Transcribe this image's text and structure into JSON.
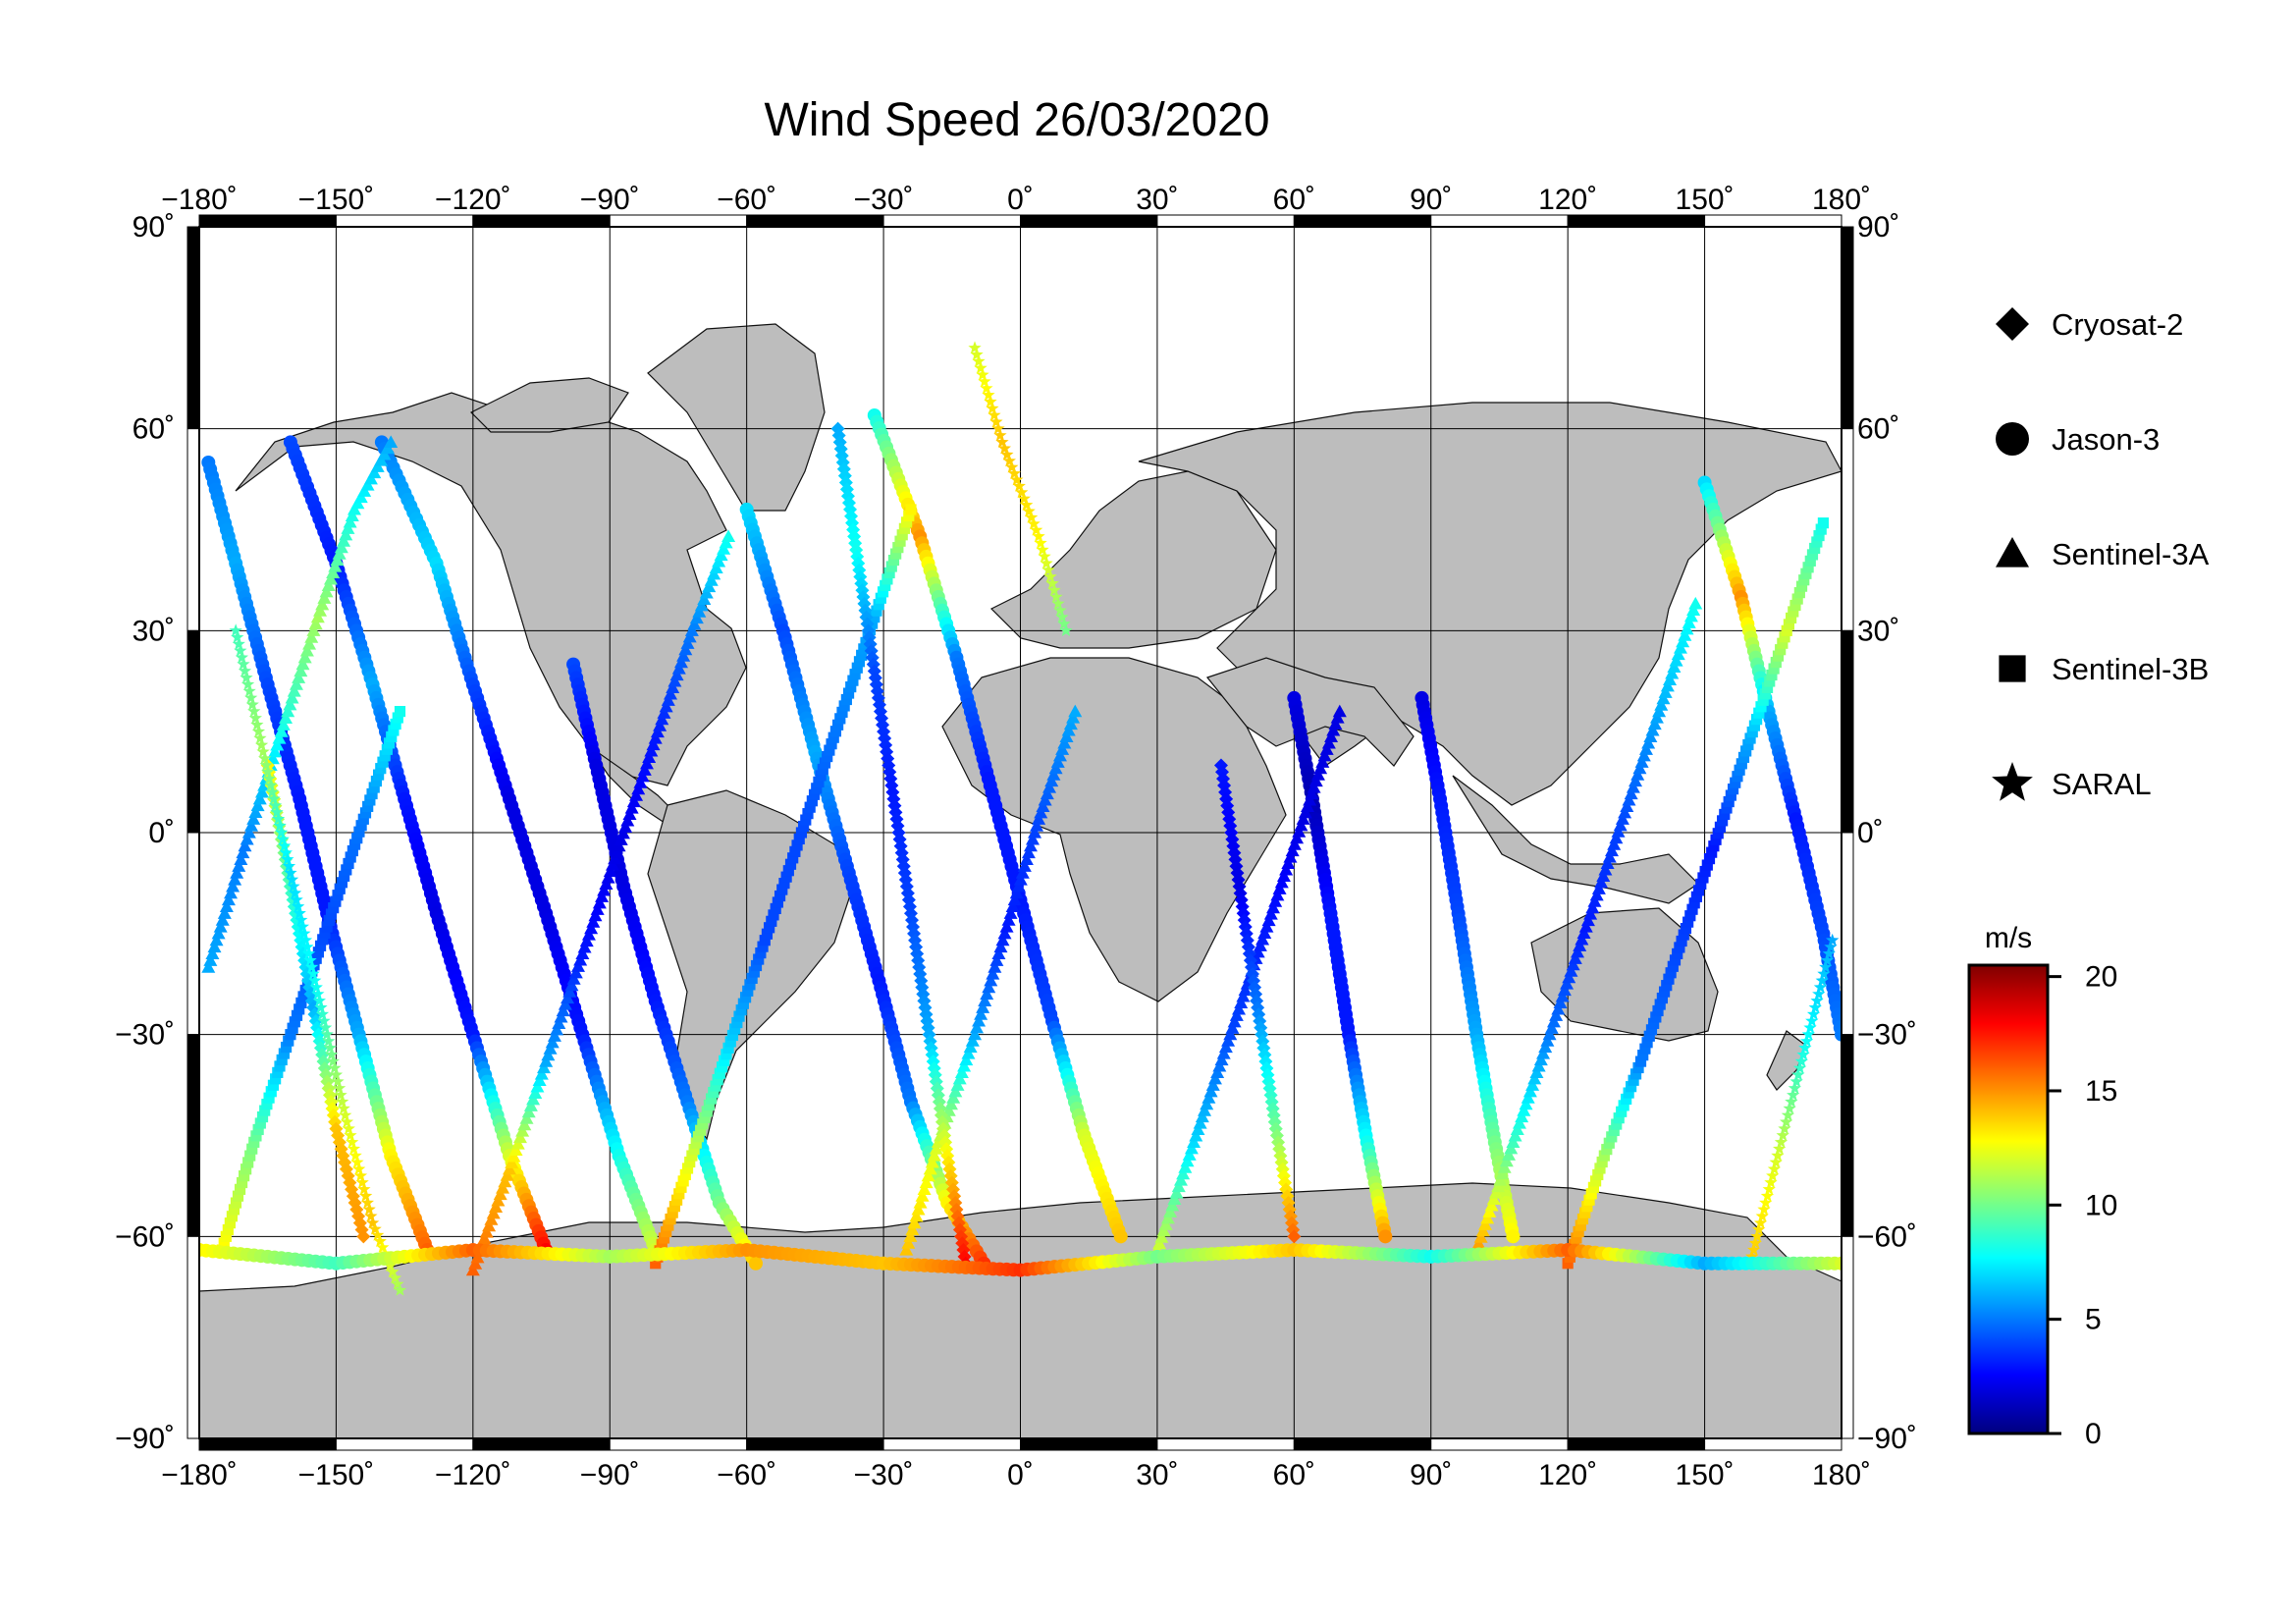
{
  "chart_data": {
    "type": "scatter",
    "title": "Wind Speed 26/03/2020",
    "projection": "equirectangular",
    "xlim": [
      -180,
      180
    ],
    "ylim": [
      -90,
      90
    ],
    "grid": true,
    "legend_position": "right",
    "x_ticks": [
      {
        "v": -180,
        "label": "−180˚"
      },
      {
        "v": -150,
        "label": "−150˚"
      },
      {
        "v": -120,
        "label": "−120˚"
      },
      {
        "v": -90,
        "label": "−90˚"
      },
      {
        "v": -60,
        "label": "−60˚"
      },
      {
        "v": -30,
        "label": "−30˚"
      },
      {
        "v": 0,
        "label": "0˚"
      },
      {
        "v": 30,
        "label": "30˚"
      },
      {
        "v": 60,
        "label": "60˚"
      },
      {
        "v": 90,
        "label": "90˚"
      },
      {
        "v": 120,
        "label": "120˚"
      },
      {
        "v": 150,
        "label": "150˚"
      },
      {
        "v": 180,
        "label": "180˚"
      }
    ],
    "y_ticks": [
      {
        "v": 90,
        "label": "90˚"
      },
      {
        "v": 60,
        "label": "60˚"
      },
      {
        "v": 30,
        "label": "30˚"
      },
      {
        "v": 0,
        "label": "0˚"
      },
      {
        "v": -30,
        "label": "−30˚"
      },
      {
        "v": -60,
        "label": "−60˚"
      },
      {
        "v": -90,
        "label": "−90˚"
      }
    ],
    "series": [
      {
        "name": "Cryosat-2",
        "marker": "diamond"
      },
      {
        "name": "Jason-3",
        "marker": "circle"
      },
      {
        "name": "Sentinel-3A",
        "marker": "triangle"
      },
      {
        "name": "Sentinel-3B",
        "marker": "square"
      },
      {
        "name": "SARAL",
        "marker": "star"
      }
    ],
    "colorbar": {
      "unit": "m/s",
      "min": 0,
      "max": 20.5,
      "ticks": [
        0,
        5,
        10,
        15,
        20
      ],
      "colormap": "jet",
      "colors": [
        "#00007f",
        "#0000ff",
        "#007fff",
        "#00ffff",
        "#7fff7f",
        "#ffff00",
        "#ff7f00",
        "#ff0000",
        "#7f0000"
      ]
    },
    "tracks_description": "Satellite ground tracks over open ocean, descending and ascending passes, low speeds (blue) in tropics, high speeds (yellow-red) in Southern Ocean near -50 to -65 latitude.",
    "tracks": [
      {
        "series": "Jason-3",
        "points": [
          [
            -178,
            55
          ],
          [
            -172,
            40
          ],
          [
            -165,
            22
          ],
          [
            -158,
            5
          ],
          [
            -152,
            -12
          ],
          [
            -145,
            -30
          ],
          [
            -138,
            -48
          ],
          [
            -130,
            -62
          ]
        ],
        "values": [
          5,
          6,
          4,
          3,
          3,
          6,
          13,
          16
        ]
      },
      {
        "series": "Jason-3",
        "points": [
          [
            -160,
            58
          ],
          [
            -150,
            40
          ],
          [
            -142,
            22
          ],
          [
            -135,
            5
          ],
          [
            -128,
            -12
          ],
          [
            -120,
            -30
          ],
          [
            -112,
            -48
          ],
          [
            -104,
            -62
          ]
        ],
        "values": [
          4,
          3,
          6,
          3,
          2,
          3,
          12,
          18
        ]
      },
      {
        "series": "Jason-3",
        "points": [
          [
            -140,
            58
          ],
          [
            -128,
            40
          ],
          [
            -120,
            22
          ],
          [
            -112,
            5
          ],
          [
            -104,
            -12
          ],
          [
            -96,
            -30
          ],
          [
            -88,
            -48
          ],
          [
            -80,
            -62
          ]
        ],
        "values": [
          5,
          7,
          4,
          2,
          2,
          3,
          8,
          12
        ]
      },
      {
        "series": "Jason-3",
        "points": [
          [
            -98,
            25
          ],
          [
            -93,
            10
          ],
          [
            -87,
            -8
          ],
          [
            -80,
            -25
          ],
          [
            -73,
            -40
          ],
          [
            -66,
            -55
          ],
          [
            -58,
            -64
          ]
        ],
        "values": [
          4,
          2,
          2,
          3,
          5,
          10,
          14
        ]
      },
      {
        "series": "Jason-3",
        "points": [
          [
            -60,
            48
          ],
          [
            -52,
            30
          ],
          [
            -45,
            12
          ],
          [
            -38,
            -5
          ],
          [
            -31,
            -22
          ],
          [
            -24,
            -40
          ],
          [
            -16,
            -55
          ],
          [
            -8,
            -64
          ]
        ],
        "values": [
          7,
          4,
          6,
          4,
          3,
          5,
          13,
          17
        ]
      },
      {
        "series": "Jason-3",
        "points": [
          [
            -32,
            62
          ],
          [
            -22,
            44
          ],
          [
            -14,
            26
          ],
          [
            -7,
            8
          ],
          [
            0,
            -10
          ],
          [
            7,
            -28
          ],
          [
            14,
            -45
          ],
          [
            22,
            -60
          ]
        ],
        "values": [
          8,
          15,
          5,
          3,
          3,
          4,
          12,
          14
        ]
      },
      {
        "series": "Jason-3",
        "points": [
          [
            60,
            20
          ],
          [
            64,
            5
          ],
          [
            68,
            -12
          ],
          [
            72,
            -30
          ],
          [
            76,
            -46
          ],
          [
            80,
            -60
          ]
        ],
        "values": [
          2,
          1,
          3,
          3,
          8,
          15
        ]
      },
      {
        "series": "Jason-3",
        "points": [
          [
            88,
            20
          ],
          [
            92,
            5
          ],
          [
            96,
            -12
          ],
          [
            100,
            -30
          ],
          [
            104,
            -46
          ],
          [
            108,
            -60
          ]
        ],
        "values": [
          2,
          3,
          4,
          6,
          10,
          13
        ]
      },
      {
        "series": "Jason-3",
        "points": [
          [
            150,
            52
          ],
          [
            158,
            35
          ],
          [
            164,
            18
          ],
          [
            170,
            2
          ],
          [
            176,
            -15
          ],
          [
            180,
            -30
          ]
        ],
        "values": [
          7,
          15,
          6,
          3,
          4,
          5
        ]
      },
      {
        "series": "Sentinel-3A",
        "points": [
          [
            -178,
            -20
          ],
          [
            -170,
            -2
          ],
          [
            -162,
            15
          ],
          [
            -154,
            32
          ],
          [
            -146,
            48
          ],
          [
            -138,
            58
          ]
        ],
        "values": [
          6,
          5,
          8,
          11,
          8,
          6
        ]
      },
      {
        "series": "Sentinel-3A",
        "points": [
          [
            -120,
            -65
          ],
          [
            -112,
            -50
          ],
          [
            -104,
            -34
          ],
          [
            -96,
            -18
          ],
          [
            -88,
            -2
          ],
          [
            -80,
            14
          ],
          [
            -72,
            30
          ],
          [
            -64,
            44
          ]
        ],
        "values": [
          16,
          14,
          6,
          3,
          2,
          3,
          5,
          8
        ]
      },
      {
        "series": "Sentinel-3A",
        "points": [
          [
            -25,
            -62
          ],
          [
            -18,
            -46
          ],
          [
            -10,
            -30
          ],
          [
            -3,
            -14
          ],
          [
            4,
            2
          ],
          [
            12,
            18
          ]
        ],
        "values": [
          14,
          12,
          6,
          3,
          4,
          6
        ]
      },
      {
        "series": "Sentinel-3A",
        "points": [
          [
            30,
            -62
          ],
          [
            38,
            -46
          ],
          [
            46,
            -30
          ],
          [
            54,
            -14
          ],
          [
            62,
            2
          ],
          [
            70,
            18
          ]
        ],
        "values": [
          12,
          7,
          4,
          3,
          2,
          2
        ]
      },
      {
        "series": "Sentinel-3A",
        "points": [
          [
            100,
            -62
          ],
          [
            108,
            -46
          ],
          [
            116,
            -30
          ],
          [
            124,
            -14
          ],
          [
            132,
            2
          ],
          [
            140,
            18
          ],
          [
            148,
            34
          ]
        ],
        "values": [
          15,
          9,
          5,
          3,
          4,
          6,
          8
        ]
      },
      {
        "series": "Sentinel-3B",
        "points": [
          [
            -175,
            -62
          ],
          [
            -168,
            -46
          ],
          [
            -160,
            -30
          ],
          [
            -152,
            -14
          ],
          [
            -144,
            2
          ],
          [
            -136,
            18
          ]
        ],
        "values": [
          13,
          10,
          5,
          4,
          5,
          8
        ]
      },
      {
        "series": "Sentinel-3B",
        "points": [
          [
            -80,
            -64
          ],
          [
            -72,
            -48
          ],
          [
            -64,
            -32
          ],
          [
            -56,
            -16
          ],
          [
            -48,
            0
          ],
          [
            -40,
            16
          ],
          [
            -32,
            32
          ],
          [
            -24,
            48
          ]
        ],
        "values": [
          16,
          12,
          7,
          4,
          4,
          5,
          6,
          13
        ]
      },
      {
        "series": "Sentinel-3B",
        "points": [
          [
            120,
            -64
          ],
          [
            128,
            -48
          ],
          [
            136,
            -34
          ],
          [
            144,
            -18
          ],
          [
            152,
            -2
          ],
          [
            160,
            14
          ],
          [
            168,
            30
          ],
          [
            176,
            46
          ]
        ],
        "values": [
          16,
          11,
          5,
          4,
          3,
          6,
          12,
          8
        ]
      },
      {
        "series": "Cryosat-2",
        "points": [
          [
            -165,
            10
          ],
          [
            -160,
            -8
          ],
          [
            -155,
            -26
          ],
          [
            -150,
            -44
          ],
          [
            -144,
            -60
          ]
        ],
        "values": [
          13,
          9,
          6,
          14,
          15
        ]
      },
      {
        "series": "Cryosat-2",
        "points": [
          [
            -40,
            60
          ],
          [
            -36,
            42
          ],
          [
            -32,
            24
          ],
          [
            -28,
            6
          ],
          [
            -24,
            -12
          ],
          [
            -20,
            -30
          ],
          [
            -16,
            -48
          ],
          [
            -12,
            -64
          ]
        ],
        "values": [
          6,
          8,
          4,
          3,
          4,
          6,
          13,
          18
        ]
      },
      {
        "series": "Cryosat-2",
        "points": [
          [
            44,
            10
          ],
          [
            48,
            -8
          ],
          [
            52,
            -26
          ],
          [
            56,
            -44
          ],
          [
            60,
            -60
          ]
        ],
        "values": [
          3,
          2,
          5,
          10,
          16
        ]
      },
      {
        "series": "SARAL",
        "points": [
          [
            -172,
            30
          ],
          [
            -166,
            12
          ],
          [
            -160,
            -6
          ],
          [
            -154,
            -24
          ],
          [
            -148,
            -42
          ],
          [
            -142,
            -58
          ],
          [
            -136,
            -68
          ]
        ],
        "values": [
          9,
          11,
          7,
          8,
          12,
          14,
          11
        ]
      },
      {
        "series": "SARAL",
        "points": [
          [
            -10,
            72
          ],
          [
            -4,
            58
          ],
          [
            4,
            44
          ],
          [
            10,
            30
          ]
        ],
        "values": [
          12,
          14,
          13,
          10
        ]
      },
      {
        "series": "SARAL",
        "points": [
          [
            160,
            -64
          ],
          [
            166,
            -48
          ],
          [
            172,
            -32
          ],
          [
            178,
            -16
          ]
        ],
        "values": [
          14,
          12,
          8,
          6
        ]
      },
      {
        "series": "Jason-3",
        "points": [
          [
            -180,
            -62
          ],
          [
            -150,
            -64
          ],
          [
            -120,
            -62
          ],
          [
            -90,
            -63
          ],
          [
            -60,
            -62
          ],
          [
            -30,
            -64
          ],
          [
            0,
            -65
          ],
          [
            30,
            -63
          ],
          [
            60,
            -62
          ],
          [
            90,
            -63
          ],
          [
            120,
            -62
          ],
          [
            150,
            -64
          ],
          [
            180,
            -64
          ]
        ],
        "values": [
          13,
          9,
          16,
          11,
          15,
          14,
          17,
          10,
          14,
          8,
          16,
          6,
          12
        ]
      }
    ]
  }
}
